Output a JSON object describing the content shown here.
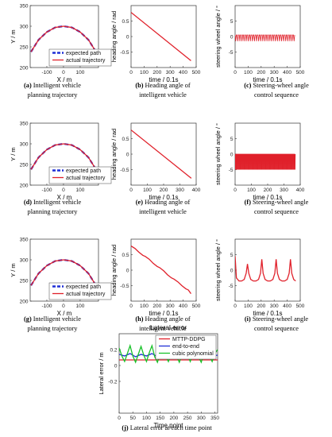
{
  "chart_data": [
    {
      "id": "a",
      "type": "line",
      "caption_label": "(a)",
      "caption_text": "Intelligent vehicle planning trajectory",
      "xlabel": "X / m",
      "ylabel": "Y / m",
      "xlim": [
        -200,
        210
      ],
      "ylim": [
        200,
        350
      ],
      "xticks": [
        -100,
        0,
        100
      ],
      "yticks": [
        200,
        250,
        300,
        350
      ],
      "legend": "bottom-right",
      "series": [
        {
          "name": "expected path",
          "color": "#1f2fd6",
          "style": "dashed",
          "x": [
            -195,
            -150,
            -100,
            -50,
            0,
            50,
            100,
            150,
            195
          ],
          "y": [
            238,
            267,
            286,
            297,
            300,
            297,
            286,
            267,
            238
          ]
        },
        {
          "name": "actual trajectory",
          "color": "#e0202a",
          "style": "solid",
          "x": [
            -195,
            -150,
            -100,
            -50,
            0,
            50,
            100,
            150,
            195
          ],
          "y": [
            238,
            267,
            286,
            297,
            300,
            297,
            286,
            267,
            238
          ]
        }
      ]
    },
    {
      "id": "b",
      "type": "line",
      "caption_label": "(b)",
      "caption_text": "Heading angle of intelligent vehicle",
      "xlabel": "time / 0.1s",
      "ylabel": "heading angle / rad",
      "xlim": [
        0,
        500
      ],
      "ylim": [
        -1,
        1
      ],
      "xticks": [
        0,
        100,
        200,
        300,
        400,
        500
      ],
      "yticks": [
        -0.5,
        0,
        0.5
      ],
      "series": [
        {
          "color": "#e0202a",
          "x": [
            0,
            460
          ],
          "y": [
            0.78,
            -0.78
          ]
        }
      ]
    },
    {
      "id": "c",
      "type": "line",
      "caption_label": "(c)",
      "caption_text": "Steering-wheel angle control sequence",
      "xlabel": "time / 0.1s",
      "ylabel": "steering wheel angle / °",
      "xlim": [
        0,
        500
      ],
      "ylim": [
        -10,
        10
      ],
      "xticks": [
        0,
        100,
        200,
        300,
        400,
        500
      ],
      "yticks": [
        -5,
        0,
        5
      ],
      "pattern": "spikes",
      "baseline": 0.5,
      "spike_low": -1.5,
      "spike_high": 0.5,
      "x_end": 460,
      "spike_step": 16,
      "series": [
        {
          "color": "#e0202a"
        }
      ]
    },
    {
      "id": "d",
      "type": "line",
      "caption_label": "(d)",
      "caption_text": "Intelligent vehicle planning trajectory",
      "xlabel": "X / m",
      "ylabel": "Y / m",
      "xlim": [
        -200,
        210
      ],
      "ylim": [
        200,
        350
      ],
      "xticks": [
        -100,
        0,
        100
      ],
      "yticks": [
        200,
        250,
        300,
        350
      ],
      "legend": "bottom-right",
      "series": [
        {
          "name": "expected path",
          "color": "#1f2fd6",
          "style": "dashed",
          "x": [
            -195,
            -150,
            -100,
            -50,
            0,
            50,
            100,
            150,
            195
          ],
          "y": [
            238,
            267,
            286,
            297,
            300,
            297,
            286,
            267,
            238
          ]
        },
        {
          "name": "actual trajectory",
          "color": "#e0202a",
          "style": "solid",
          "x": [
            -195,
            -150,
            -100,
            -50,
            0,
            50,
            100,
            150,
            195
          ],
          "y": [
            238,
            267,
            286,
            297,
            300,
            297,
            286,
            267,
            238
          ]
        }
      ]
    },
    {
      "id": "e",
      "type": "line",
      "caption_label": "(e)",
      "caption_text": "Heading angle of intelligent vehicle",
      "xlabel": "time / 0.1s",
      "ylabel": "heading angle / rad",
      "xlim": [
        0,
        400
      ],
      "ylim": [
        -1,
        1
      ],
      "xticks": [
        0,
        100,
        200,
        300,
        400
      ],
      "yticks": [
        -0.5,
        0,
        0.5
      ],
      "series": [
        {
          "color": "#e0202a",
          "x": [
            0,
            370
          ],
          "y": [
            0.78,
            -0.78
          ]
        }
      ]
    },
    {
      "id": "f",
      "type": "line",
      "caption_label": "(f)",
      "caption_text": "Steering-wheel angle control sequence",
      "xlabel": "time / 0.1s",
      "ylabel": "steering wheel angle / °",
      "xlim": [
        0,
        400
      ],
      "ylim": [
        -10,
        10
      ],
      "xticks": [
        0,
        100,
        200,
        300,
        400
      ],
      "yticks": [
        -5,
        0,
        5
      ],
      "pattern": "band",
      "baseline": 0,
      "spike_low": -5,
      "spike_high": 0,
      "x_end": 370,
      "spike_step": 6,
      "series": [
        {
          "color": "#e0202a"
        }
      ]
    },
    {
      "id": "g",
      "type": "line",
      "caption_label": "(g)",
      "caption_text": "Intelligent vehicle planning trajectory",
      "xlabel": "X / m",
      "ylabel": "Y / m",
      "xlim": [
        -200,
        210
      ],
      "ylim": [
        200,
        350
      ],
      "xticks": [
        -100,
        0,
        100
      ],
      "yticks": [
        200,
        250,
        300,
        350
      ],
      "legend": "bottom-right",
      "series": [
        {
          "name": "expected path",
          "color": "#1f2fd6",
          "style": "dashed",
          "x": [
            -195,
            -150,
            -100,
            -50,
            0,
            50,
            100,
            150,
            195
          ],
          "y": [
            238,
            267,
            286,
            297,
            300,
            297,
            286,
            267,
            238
          ]
        },
        {
          "name": "actual trajectory",
          "color": "#e0202a",
          "style": "solid",
          "x": [
            -195,
            -150,
            -100,
            -50,
            0,
            50,
            100,
            150,
            195
          ],
          "y": [
            238,
            267,
            286,
            297,
            300,
            297,
            286,
            267,
            238
          ]
        }
      ]
    },
    {
      "id": "h",
      "type": "line",
      "caption_label": "(h)",
      "caption_text": "Heading angle of intelligent vehicle",
      "xlabel": "time / 0.1s",
      "ylabel": "heading angle / rad",
      "xlim": [
        0,
        500
      ],
      "ylim": [
        -1,
        1
      ],
      "xticks": [
        0,
        100,
        200,
        300,
        400,
        500
      ],
      "yticks": [
        -0.5,
        0,
        0.5
      ],
      "series": [
        {
          "color": "#e0202a",
          "x": [
            0,
            30,
            60,
            90,
            110,
            140,
            170,
            200,
            220,
            250,
            280,
            310,
            330,
            360,
            390,
            420,
            440,
            460
          ],
          "y": [
            0.78,
            0.7,
            0.58,
            0.48,
            0.44,
            0.35,
            0.22,
            0.12,
            0.08,
            -0.02,
            -0.15,
            -0.25,
            -0.29,
            -0.38,
            -0.5,
            -0.6,
            -0.64,
            -0.76
          ]
        }
      ]
    },
    {
      "id": "i",
      "type": "line",
      "caption_label": "(i)",
      "caption_text": "Steering-wheel angle control sequence",
      "xlabel": "time / 0.1s",
      "ylabel": "steering wheel angle / °",
      "xlim": [
        0,
        500
      ],
      "ylim": [
        -10,
        10
      ],
      "xticks": [
        0,
        100,
        200,
        300,
        400,
        500
      ],
      "yticks": [
        -5,
        0,
        5
      ],
      "series": [
        {
          "color": "#e0202a",
          "x": [
            0,
            10,
            30,
            50,
            70,
            85,
            95,
            105,
            120,
            140,
            160,
            180,
            195,
            205,
            215,
            230,
            250,
            270,
            290,
            305,
            315,
            325,
            340,
            360,
            380,
            400,
            415,
            425,
            435,
            450,
            465
          ],
          "y": [
            4.5,
            -2.5,
            -3.5,
            -3.5,
            -3.0,
            -1.0,
            2.0,
            -1.0,
            -3.0,
            -3.5,
            -3.5,
            -3.0,
            -1.0,
            3.5,
            -1.0,
            -3.0,
            -3.5,
            -3.5,
            -3.0,
            -1.0,
            3.5,
            -1.0,
            -3.0,
            -3.5,
            -3.5,
            -3.0,
            -1.0,
            3.5,
            -1.0,
            -3.0,
            -3.5
          ]
        }
      ]
    },
    {
      "id": "j",
      "type": "line",
      "title": "Lateral error",
      "caption_label": "(j)",
      "caption_text": "Lateral error at each time point",
      "xlabel": "Time point",
      "ylabel": "Lateral error / m",
      "xlim": [
        0,
        360
      ],
      "ylim": [
        -0.6,
        0.4
      ],
      "xticks": [
        0,
        50,
        100,
        150,
        200,
        250,
        300,
        350
      ],
      "yticks": [
        -0.2,
        0,
        0.2
      ],
      "legend": "top-right",
      "series": [
        {
          "name": "MTTP-DDPG",
          "color": "#e0202a",
          "x": [
            0,
            50,
            100,
            150,
            200,
            250,
            300,
            350,
            360
          ],
          "y": [
            0.07,
            0.07,
            0.07,
            0.07,
            0.07,
            0.07,
            0.07,
            0.07,
            0.07
          ]
        },
        {
          "name": "end-to-end",
          "color": "#1f2fd6",
          "x": [
            0,
            20,
            40,
            60,
            80,
            100,
            120,
            140,
            160,
            180,
            200,
            220,
            240,
            260,
            280,
            300,
            320,
            340,
            360
          ],
          "y": [
            0.14,
            0.12,
            0.15,
            0.11,
            0.14,
            0.12,
            0.15,
            0.11,
            0.14,
            0.12,
            0.15,
            0.11,
            0.14,
            0.12,
            0.15,
            0.11,
            0.14,
            0.12,
            0.13
          ]
        },
        {
          "name": "cubic polynomial",
          "color": "#19c22a",
          "x": [
            0,
            10,
            20,
            30,
            40,
            50,
            60,
            70,
            80,
            90,
            100,
            110,
            120,
            130,
            140,
            150,
            160,
            170,
            180,
            190,
            200,
            210,
            220,
            230,
            240,
            250,
            260,
            270,
            280,
            290,
            300,
            310,
            320,
            330,
            340,
            350,
            360
          ],
          "y": [
            0.22,
            0.12,
            0.05,
            0.15,
            0.25,
            0.12,
            0.04,
            0.14,
            0.24,
            0.13,
            0.05,
            0.16,
            0.25,
            0.11,
            0.04,
            0.15,
            0.24,
            0.12,
            0.05,
            0.15,
            0.25,
            0.12,
            0.04,
            0.14,
            0.24,
            0.13,
            0.05,
            0.16,
            0.25,
            0.11,
            0.04,
            0.15,
            0.24,
            0.12,
            0.05,
            0.15,
            0.2
          ]
        }
      ]
    }
  ]
}
